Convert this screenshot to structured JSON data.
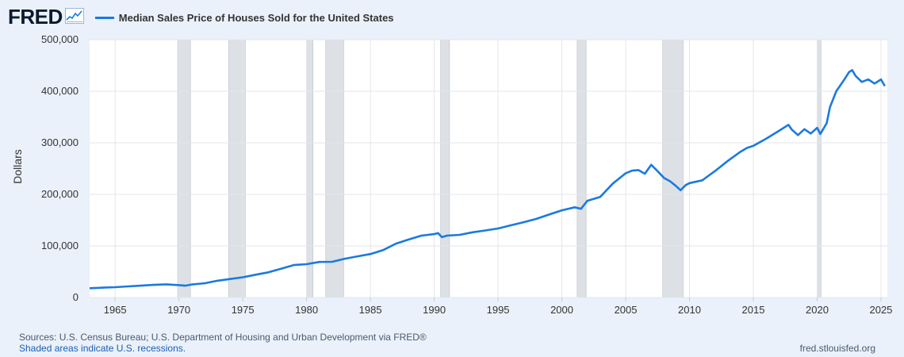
{
  "header": {
    "logo_text": "FRED",
    "logo_icon": "fred-chart-icon",
    "series_title": "Median Sales Price of Houses Sold for the United States"
  },
  "colors": {
    "line": "#1a7ae0",
    "recession": "#dde1e6",
    "background": "#eaf1fa"
  },
  "footer": {
    "sources": "Sources: U.S. Census Bureau; U.S. Department of Housing and Urban Development via FRED®",
    "shaded_note": "Shaded areas indicate U.S. recessions.",
    "url": "fred.stlouisfed.org"
  },
  "chart_data": {
    "type": "line",
    "title": "Median Sales Price of Houses Sold for the United States",
    "ylabel": "Dollars",
    "xlabel": "",
    "xlim": [
      1963.0,
      2025.5
    ],
    "ylim": [
      0,
      500000
    ],
    "x_ticks": [
      1965,
      1970,
      1975,
      1980,
      1985,
      1990,
      1995,
      2000,
      2005,
      2010,
      2015,
      2020,
      2025
    ],
    "y_ticks": [
      0,
      100000,
      200000,
      300000,
      400000,
      500000
    ],
    "y_tick_labels": [
      "0",
      "100,000",
      "200,000",
      "300,000",
      "400,000",
      "500,000"
    ],
    "grid": true,
    "recessions": [
      [
        1969.9,
        1970.9
      ],
      [
        1973.9,
        1975.2
      ],
      [
        1980.0,
        1980.5
      ],
      [
        1981.5,
        1982.9
      ],
      [
        1990.5,
        1991.2
      ],
      [
        2001.2,
        2001.9
      ],
      [
        2007.9,
        2009.5
      ],
      [
        2020.0,
        2020.3
      ]
    ],
    "series": [
      {
        "name": "Median Sales Price of Houses Sold for the United States",
        "x": [
          1963,
          1964,
          1965,
          1966,
          1967,
          1968,
          1969,
          1970,
          1970.5,
          1971,
          1972,
          1973,
          1974,
          1975,
          1976,
          1977,
          1978,
          1979,
          1980,
          1981,
          1982,
          1983,
          1984,
          1985,
          1986,
          1987,
          1988,
          1989,
          1990,
          1990.3,
          1990.6,
          1991,
          1992,
          1993,
          1994,
          1995,
          1996,
          1997,
          1998,
          1999,
          2000,
          2001,
          2001.5,
          2002,
          2003,
          2004,
          2005,
          2005.5,
          2006,
          2006.5,
          2007,
          2007.5,
          2008,
          2008.5,
          2009,
          2009.3,
          2009.7,
          2010,
          2011,
          2012,
          2013,
          2014,
          2014.5,
          2015,
          2016,
          2017,
          2017.75,
          2018,
          2018.5,
          2019,
          2019.5,
          2020,
          2020.25,
          2020.75,
          2021,
          2021.5,
          2022,
          2022.5,
          2022.75,
          2023,
          2023.5,
          2024,
          2024.5,
          2025,
          2025.3
        ],
        "values": [
          18000,
          19000,
          20000,
          21500,
          23000,
          24500,
          25600,
          24000,
          23000,
          25200,
          27600,
          32500,
          35900,
          39300,
          44200,
          48800,
          55700,
          62900,
          64600,
          68900,
          69300,
          75300,
          79900,
          84300,
          92000,
          104500,
          112500,
          120000,
          122900,
          125000,
          117000,
          120000,
          121500,
          126500,
          130000,
          133900,
          140000,
          146000,
          152500,
          161000,
          169000,
          175000,
          172000,
          187500,
          195000,
          221000,
          240900,
          246000,
          247000,
          240000,
          257400,
          245000,
          232000,
          225000,
          215000,
          208000,
          218000,
          221800,
          227200,
          245200,
          265000,
          282800,
          290000,
          294200,
          307800,
          323100,
          335000,
          326000,
          315000,
          326400,
          318000,
          329000,
          317000,
          338000,
          369000,
          400000,
          418000,
          437000,
          441000,
          430000,
          418000,
          423000,
          415000,
          423000,
          410000
        ]
      }
    ]
  }
}
